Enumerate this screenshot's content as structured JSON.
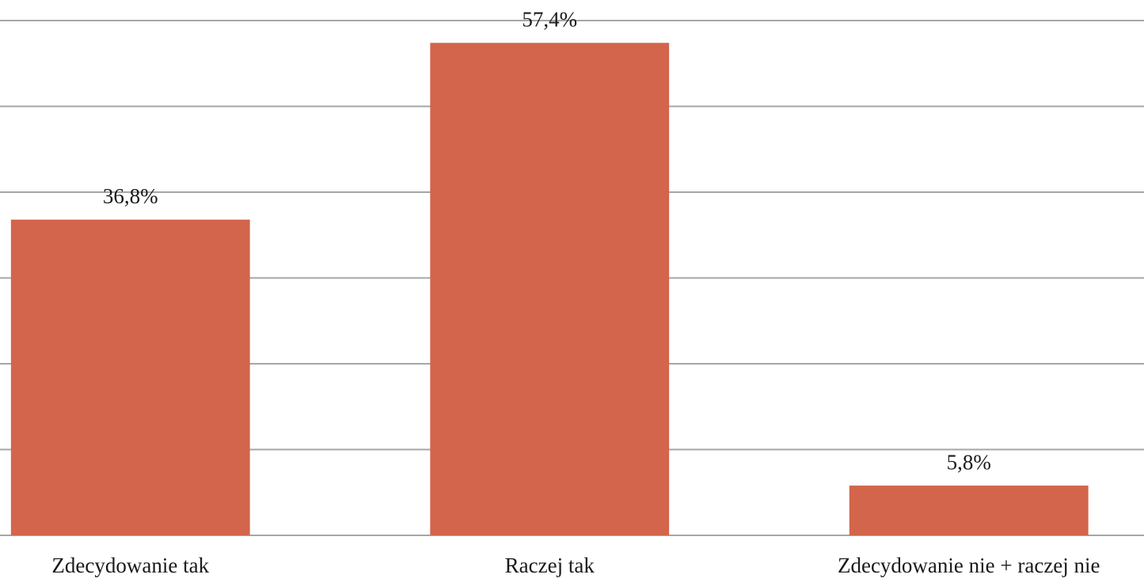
{
  "chart_data": {
    "type": "bar",
    "categories": [
      "Zdecydowanie tak",
      "Raczej tak",
      "Zdecydowanie nie + raczej nie"
    ],
    "values": [
      36.8,
      57.4,
      5.8
    ],
    "value_labels": [
      "36,8%",
      "57,4%",
      "5,8%"
    ],
    "color": "#d2654b",
    "ylim": [
      0,
      60
    ],
    "yticks": [
      0,
      10,
      20,
      30,
      40,
      50,
      60
    ],
    "grid": true
  }
}
